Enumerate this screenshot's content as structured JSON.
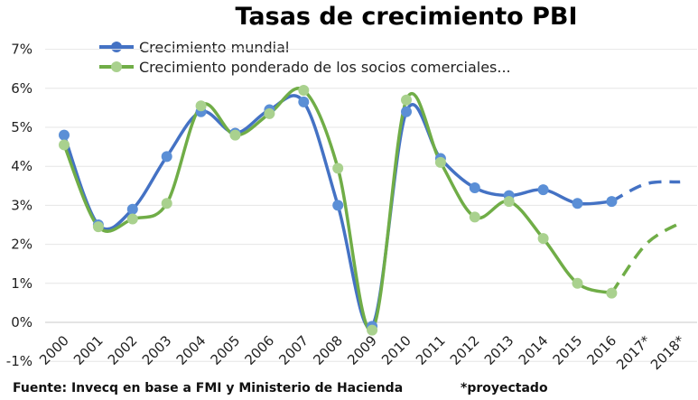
{
  "chart_data": {
    "type": "line",
    "title": "Tasas de crecimiento PBI",
    "x": [
      "2000",
      "2001",
      "2002",
      "2003",
      "2004",
      "2005",
      "2006",
      "2007",
      "2008",
      "2009",
      "2010",
      "2011",
      "2012",
      "2013",
      "2014",
      "2015",
      "2016",
      "2017*",
      "2018*"
    ],
    "y_ticks": [
      "-1%",
      "0%",
      "1%",
      "2%",
      "3%",
      "4%",
      "5%",
      "6%",
      "7%"
    ],
    "ylim": [
      -1,
      7
    ],
    "grid": "horizontal",
    "legend_position": "top-center",
    "series": [
      {
        "name": "Crecimiento mundial",
        "color": "#4472c4",
        "values": [
          4.8,
          2.5,
          2.9,
          4.25,
          5.4,
          4.85,
          5.45,
          5.65,
          3.0,
          -0.1,
          5.4,
          4.2,
          3.45,
          3.25,
          3.4,
          3.05,
          3.1,
          3.55,
          3.6
        ],
        "projected_from_index": 16
      },
      {
        "name": "Crecimiento ponderado de los socios comerciales...",
        "color": "#70ad47",
        "values": [
          4.55,
          2.45,
          2.65,
          3.05,
          5.55,
          4.8,
          5.35,
          5.95,
          3.95,
          -0.2,
          5.7,
          4.1,
          2.7,
          3.1,
          2.15,
          1.0,
          0.75,
          2.0,
          2.55
        ],
        "projected_from_index": 16
      }
    ],
    "footer_source": "Fuente: Invecq en base a FMI y Ministerio de Hacienda",
    "footer_note": "*proyectado"
  }
}
